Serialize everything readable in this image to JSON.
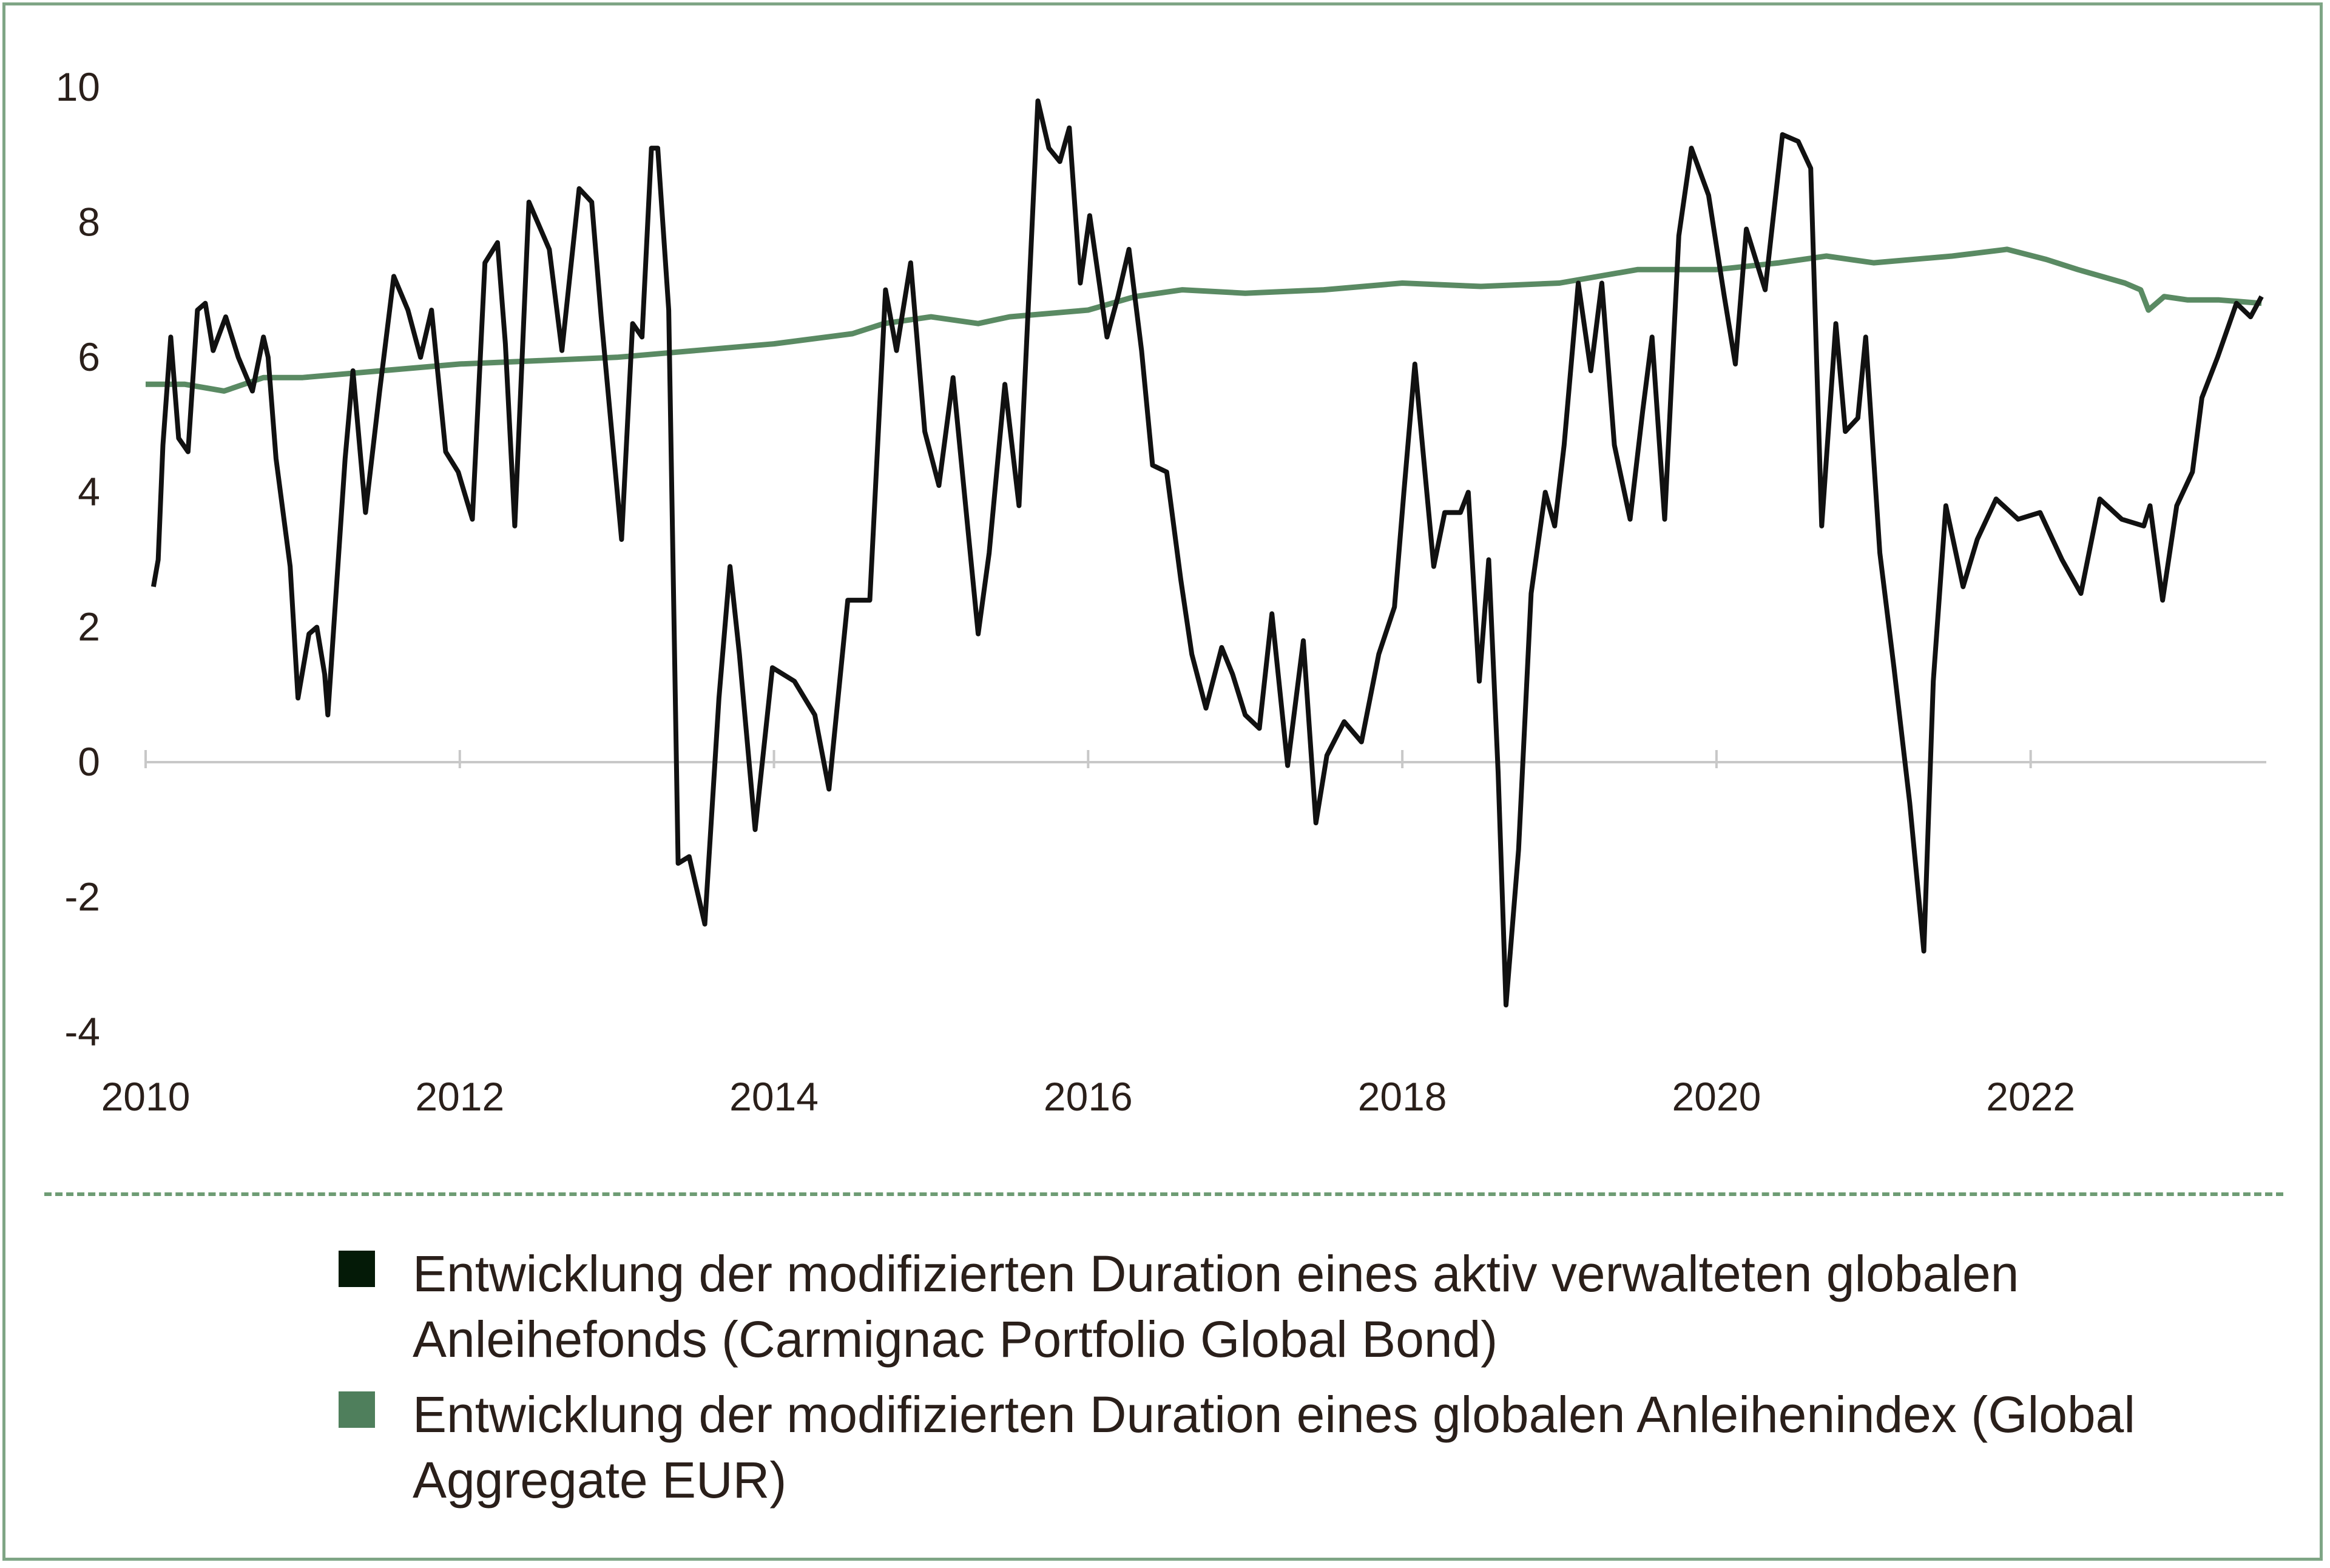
{
  "chart_data": {
    "type": "line",
    "title": "",
    "xlabel": "",
    "ylabel": "",
    "xlim": [
      2010,
      2023.5
    ],
    "ylim": [
      -4,
      10
    ],
    "x_ticks": [
      "2010",
      "2012",
      "2014",
      "2016",
      "2018",
      "2020",
      "2022"
    ],
    "y_ticks": [
      "10",
      "8",
      "6",
      "4",
      "2",
      "0",
      "-2",
      "-4"
    ],
    "legend_position": "bottom",
    "series": [
      {
        "name": "Entwicklung der modifizierten Duration eines aktiv verwalteten globalen Anleihefonds (Carmignac Portfolio Global Bond)",
        "color": "#111111",
        "legend_color": "#041a07",
        "x": [
          2010.05,
          2010.08,
          2010.11,
          2010.16,
          2010.21,
          2010.27,
          2010.33,
          2010.38,
          2010.43,
          2010.51,
          2010.59,
          2010.68,
          2010.75,
          2010.78,
          2010.83,
          2010.92,
          2010.97,
          2011.04,
          2011.09,
          2011.14,
          2011.16,
          2011.27,
          2011.32,
          2011.4,
          2011.49,
          2011.58,
          2011.67,
          2011.75,
          2011.82,
          2011.91,
          2011.99,
          2012.08,
          2012.16,
          2012.24,
          2012.29,
          2012.35,
          2012.44,
          2012.57,
          2012.65,
          2012.76,
          2012.84,
          2012.9,
          2013.03,
          2013.1,
          2013.16,
          2013.22,
          2013.26,
          2013.33,
          2013.39,
          2013.46,
          2013.56,
          2013.65,
          2013.72,
          2013.78,
          2013.88,
          2013.99,
          2014.13,
          2014.26,
          2014.35,
          2014.47,
          2014.61,
          2014.71,
          2014.78,
          2014.87,
          2014.96,
          2015.05,
          2015.14,
          2015.22,
          2015.3,
          2015.37,
          2015.47,
          2015.56,
          2015.68,
          2015.75,
          2015.82,
          2015.88,
          2015.95,
          2016.01,
          2016.12,
          2016.19,
          2016.26,
          2016.34,
          2016.41,
          2016.5,
          2016.59,
          2016.66,
          2016.75,
          2016.85,
          2016.92,
          2017.0,
          2017.09,
          2017.17,
          2017.27,
          2017.37,
          2017.45,
          2017.52,
          2017.63,
          2017.74,
          2017.85,
          2017.95,
          2018.01,
          2018.08,
          2018.2,
          2018.27,
          2018.37,
          2018.42,
          2018.49,
          2018.55,
          2018.61,
          2018.66,
          2018.74,
          2018.82,
          2018.91,
          2018.97,
          2019.03,
          2019.12,
          2019.2,
          2019.27,
          2019.35,
          2019.45,
          2019.53,
          2019.59,
          2019.67,
          2019.76,
          2019.84,
          2019.95,
          2020.05,
          2020.12,
          2020.19,
          2020.31,
          2020.42,
          2020.52,
          2020.6,
          2020.67,
          2020.76,
          2020.82,
          2020.9,
          2020.95,
          2021.04,
          2021.13,
          2021.23,
          2021.32,
          2021.38,
          2021.46,
          2021.57,
          2021.66,
          2021.78,
          2021.92,
          2022.06,
          2022.2,
          2022.32,
          2022.44,
          2022.58,
          2022.72,
          2022.76,
          2022.84,
          2022.93,
          2023.03,
          2023.09,
          2023.19,
          2023.31,
          2023.4,
          2023.47
        ],
        "y": [
          2.6,
          3.0,
          4.7,
          6.3,
          4.8,
          4.6,
          6.7,
          6.8,
          6.1,
          6.6,
          6.0,
          5.5,
          6.3,
          6.0,
          4.5,
          2.9,
          0.95,
          1.9,
          2.0,
          1.3,
          0.7,
          4.5,
          5.8,
          3.7,
          5.5,
          7.2,
          6.7,
          6.0,
          6.7,
          4.6,
          4.3,
          3.6,
          7.4,
          7.7,
          6.2,
          3.5,
          8.3,
          7.6,
          6.1,
          8.5,
          8.3,
          6.6,
          3.3,
          6.5,
          6.3,
          9.1,
          9.1,
          6.7,
          -1.5,
          -1.4,
          -2.4,
          0.95,
          2.9,
          1.6,
          -1.0,
          1.4,
          1.2,
          0.7,
          -0.4,
          2.4,
          2.4,
          7.0,
          6.1,
          7.4,
          4.9,
          4.1,
          5.7,
          3.8,
          1.9,
          3.1,
          5.6,
          3.8,
          9.8,
          9.1,
          8.9,
          9.4,
          7.1,
          8.1,
          6.3,
          6.9,
          7.6,
          6.1,
          4.4,
          4.3,
          2.7,
          1.6,
          0.8,
          1.7,
          1.3,
          0.7,
          0.5,
          2.2,
          -0.05,
          1.8,
          -0.9,
          0.1,
          0.6,
          0.3,
          1.6,
          2.3,
          4.0,
          5.9,
          2.9,
          3.7,
          3.7,
          4.0,
          1.2,
          3.0,
          -0.15,
          -3.6,
          -1.3,
          2.5,
          4.0,
          3.5,
          4.7,
          7.1,
          5.8,
          7.1,
          4.7,
          3.6,
          5.2,
          6.3,
          3.6,
          7.8,
          9.1,
          8.4,
          6.9,
          5.9,
          7.9,
          7.0,
          9.3,
          9.2,
          8.8,
          3.5,
          6.5,
          4.9,
          5.1,
          6.3,
          3.1,
          1.4,
          -0.6,
          -2.8,
          1.2,
          3.8,
          2.6,
          3.3,
          3.9,
          3.6,
          3.7,
          3.0,
          2.5,
          3.9,
          3.6,
          3.5,
          3.8,
          2.4,
          3.8,
          4.3,
          5.4,
          6.0,
          6.8,
          6.6,
          6.9
        ]
      },
      {
        "name": "Entwicklung der modifizierten Duration eines globalen Anleihenindex (Global Aggregate EUR)",
        "color": "#5a8a63",
        "legend_color": "#4f7f5c",
        "x": [
          2010.0,
          2010.25,
          2010.5,
          2010.75,
          2011.0,
          2011.5,
          2012.0,
          2012.5,
          2013.0,
          2013.5,
          2014.0,
          2014.5,
          2014.7,
          2015.0,
          2015.3,
          2015.5,
          2016.0,
          2016.3,
          2016.6,
          2017.0,
          2017.5,
          2018.0,
          2018.5,
          2019.0,
          2019.5,
          2020.0,
          2020.4,
          2020.7,
          2021.0,
          2021.5,
          2021.85,
          2022.1,
          2022.3,
          2022.6,
          2022.7,
          2022.75,
          2022.85,
          2023.0,
          2023.2,
          2023.47
        ],
        "y": [
          5.6,
          5.6,
          5.5,
          5.7,
          5.7,
          5.8,
          5.9,
          5.95,
          6.0,
          6.1,
          6.2,
          6.35,
          6.5,
          6.6,
          6.5,
          6.6,
          6.7,
          6.9,
          7.0,
          6.95,
          7.0,
          7.1,
          7.05,
          7.1,
          7.3,
          7.3,
          7.4,
          7.5,
          7.4,
          7.5,
          7.6,
          7.45,
          7.3,
          7.1,
          7.0,
          6.7,
          6.9,
          6.85,
          6.85,
          6.8
        ]
      }
    ]
  }
}
